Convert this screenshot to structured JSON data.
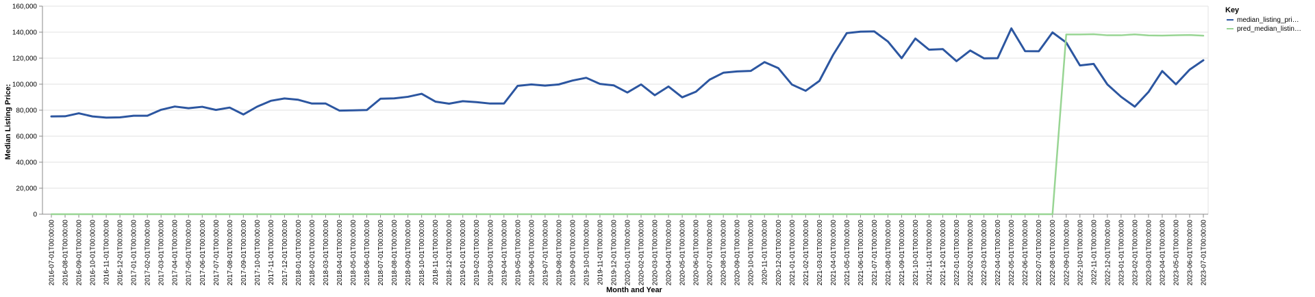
{
  "chart_data": {
    "type": "line",
    "xlabel": "Month and Year",
    "ylabel": "Median Listing Price:",
    "ylim": [
      0,
      160000
    ],
    "yticks": [
      "0",
      "20,000",
      "40,000",
      "60,000",
      "80,000",
      "100,000",
      "120,000",
      "140,000",
      "160,000"
    ],
    "grid": true,
    "legend": {
      "title": "Key",
      "placement": "right",
      "entries": [
        "median_listing_pri…",
        "pred_median_listin…"
      ]
    },
    "x": [
      "2016-07-01T00:00:00",
      "2016-08-01T00:00:00",
      "2016-09-01T00:00:00",
      "2016-10-01T00:00:00",
      "2016-11-01T00:00:00",
      "2016-12-01T00:00:00",
      "2017-01-01T00:00:00",
      "2017-02-01T00:00:00",
      "2017-03-01T00:00:00",
      "2017-04-01T00:00:00",
      "2017-05-01T00:00:00",
      "2017-06-01T00:00:00",
      "2017-07-01T00:00:00",
      "2017-08-01T00:00:00",
      "2017-09-01T00:00:00",
      "2017-10-01T00:00:00",
      "2017-11-01T00:00:00",
      "2017-12-01T00:00:00",
      "2018-01-01T00:00:00",
      "2018-02-01T00:00:00",
      "2018-03-01T00:00:00",
      "2018-04-01T00:00:00",
      "2018-05-01T00:00:00",
      "2018-06-01T00:00:00",
      "2018-07-01T00:00:00",
      "2018-08-01T00:00:00",
      "2018-09-01T00:00:00",
      "2018-10-01T00:00:00",
      "2018-11-01T00:00:00",
      "2018-12-01T00:00:00",
      "2019-01-01T00:00:00",
      "2019-02-01T00:00:00",
      "2019-03-01T00:00:00",
      "2019-04-01T00:00:00",
      "2019-05-01T00:00:00",
      "2019-06-01T00:00:00",
      "2019-07-01T00:00:00",
      "2019-08-01T00:00:00",
      "2019-09-01T00:00:00",
      "2019-10-01T00:00:00",
      "2019-11-01T00:00:00",
      "2019-12-01T00:00:00",
      "2020-01-01T00:00:00",
      "2020-02-01T00:00:00",
      "2020-03-01T00:00:00",
      "2020-04-01T00:00:00",
      "2020-05-01T00:00:00",
      "2020-06-01T00:00:00",
      "2020-07-01T00:00:00",
      "2020-08-01T00:00:00",
      "2020-09-01T00:00:00",
      "2020-10-01T00:00:00",
      "2020-11-01T00:00:00",
      "2020-12-01T00:00:00",
      "2021-01-01T00:00:00",
      "2021-02-01T00:00:00",
      "2021-03-01T00:00:00",
      "2021-04-01T00:00:00",
      "2021-05-01T00:00:00",
      "2021-06-01T00:00:00",
      "2021-07-01T00:00:00",
      "2021-08-01T00:00:00",
      "2021-09-01T00:00:00",
      "2021-10-01T00:00:00",
      "2021-11-01T00:00:00",
      "2021-12-01T00:00:00",
      "2022-01-01T00:00:00",
      "2022-02-01T00:00:00",
      "2022-03-01T00:00:00",
      "2022-04-01T00:00:00",
      "2022-05-01T00:00:00",
      "2022-06-01T00:00:00",
      "2022-07-01T00:00:00",
      "2022-08-01T00:00:00",
      "2022-09-01T00:00:00",
      "2022-10-01T00:00:00",
      "2022-11-01T00:00:00",
      "2022-12-01T00:00:00",
      "2023-01-01T00:00:00",
      "2023-02-01T00:00:00",
      "2023-03-01T00:00:00",
      "2023-04-01T00:00:00",
      "2023-05-01T00:00:00",
      "2023-06-01T00:00:00",
      "2023-07-01T00:00:00"
    ],
    "series": [
      {
        "name": "median_listing_pri…",
        "color": "#2c56a0",
        "values": [
          75200,
          75300,
          77600,
          75200,
          74300,
          74500,
          75700,
          75700,
          80300,
          82800,
          81500,
          82600,
          80200,
          82000,
          76700,
          82700,
          87200,
          89000,
          88000,
          85100,
          85100,
          79700,
          79900,
          80100,
          88800,
          89100,
          90300,
          92600,
          86600,
          85000,
          86900,
          86200,
          85100,
          85100,
          98700,
          99800,
          98900,
          99800,
          102800,
          104900,
          100200,
          99100,
          93600,
          99800,
          91500,
          98200,
          89900,
          94200,
          103500,
          108800,
          109800,
          110200,
          117000,
          112400,
          99700,
          94900,
          102500,
          122500,
          139300,
          140400,
          140600,
          132800,
          120000,
          135100,
          126500,
          127000,
          117700,
          125900,
          119900,
          120000,
          142900,
          125400,
          125300,
          139800,
          132000,
          114400,
          115600,
          99800,
          90300,
          82700,
          94000,
          110100,
          99900,
          111200,
          118400
        ]
      },
      {
        "name": "pred_median_listin…",
        "color": "#98d593",
        "values": [
          0,
          0,
          0,
          0,
          0,
          0,
          0,
          0,
          0,
          0,
          0,
          0,
          0,
          0,
          0,
          0,
          0,
          0,
          0,
          0,
          0,
          0,
          0,
          0,
          0,
          0,
          0,
          0,
          0,
          0,
          0,
          0,
          0,
          0,
          0,
          0,
          0,
          0,
          0,
          0,
          0,
          0,
          0,
          0,
          0,
          0,
          0,
          0,
          0,
          0,
          0,
          0,
          0,
          0,
          0,
          0,
          0,
          0,
          0,
          0,
          0,
          0,
          0,
          0,
          0,
          0,
          0,
          0,
          0,
          0,
          0,
          0,
          0,
          0,
          138200,
          138200,
          138400,
          137600,
          137600,
          138300,
          137500,
          137400,
          137600,
          137800,
          137300
        ]
      }
    ]
  }
}
